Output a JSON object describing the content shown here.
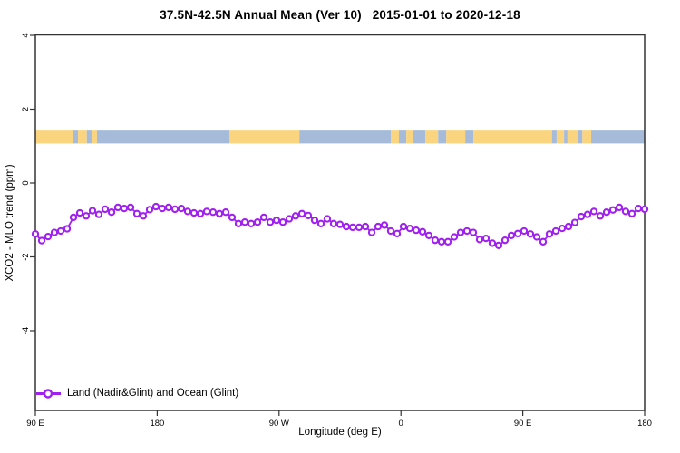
{
  "chart_data": {
    "type": "line",
    "title": "37.5N-42.5N Annual Mean (Ver 10)   2015-01-01 to 2020-12-18",
    "xlabel": "Longitude (deg E)",
    "ylabel": "XCO2 - MLO trend (ppm)",
    "grid": false,
    "legend_position": "inside-bottom-left",
    "x_axis": {
      "description": "longitude wrapping eastward from 90E, total span 450 degrees",
      "tick_labels": [
        "90 E",
        "180",
        "90 W",
        "0",
        "90 E",
        "180"
      ],
      "tick_offsets_deg": [
        0,
        90,
        180,
        270,
        360,
        450
      ],
      "span_deg": 450
    },
    "y_axis": {
      "tick_values": [
        4,
        2,
        0,
        -2,
        -4
      ],
      "ylim": [
        -6.2,
        4.0
      ]
    },
    "series": [
      {
        "name": "Land (Nadir&Glint) and Ocean (Glint)",
        "color": "#A020F0",
        "marker": "open-circle",
        "x_start_deg": 0,
        "x_step_deg": 4.6875,
        "values": [
          -1.38,
          -1.56,
          -1.45,
          -1.34,
          -1.3,
          -1.24,
          -0.93,
          -0.81,
          -0.89,
          -0.75,
          -0.85,
          -0.71,
          -0.79,
          -0.66,
          -0.69,
          -0.66,
          -0.83,
          -0.89,
          -0.72,
          -0.64,
          -0.69,
          -0.66,
          -0.71,
          -0.69,
          -0.77,
          -0.81,
          -0.83,
          -0.77,
          -0.79,
          -0.83,
          -0.79,
          -0.93,
          -1.1,
          -1.06,
          -1.1,
          -1.06,
          -0.93,
          -1.06,
          -1.01,
          -1.06,
          -0.97,
          -0.89,
          -0.83,
          -0.88,
          -1.01,
          -1.1,
          -0.97,
          -1.1,
          -1.12,
          -1.18,
          -1.2,
          -1.2,
          -1.18,
          -1.34,
          -1.18,
          -1.14,
          -1.3,
          -1.37,
          -1.18,
          -1.23,
          -1.28,
          -1.32,
          -1.42,
          -1.55,
          -1.59,
          -1.59,
          -1.46,
          -1.34,
          -1.3,
          -1.34,
          -1.53,
          -1.5,
          -1.63,
          -1.69,
          -1.55,
          -1.42,
          -1.37,
          -1.3,
          -1.38,
          -1.46,
          -1.59,
          -1.38,
          -1.3,
          -1.23,
          -1.18,
          -1.07,
          -0.91,
          -0.85,
          -0.77,
          -0.89,
          -0.79,
          -0.73,
          -0.66,
          -0.77,
          -0.83,
          -0.69,
          -0.71
        ]
      }
    ],
    "land_ocean_strip": {
      "description": "land/ocean map band drawn across the plot near +1.2 ppm",
      "land_color": "#FBD47F",
      "ocean_color": "#A5BBD9",
      "ppm_top": 1.42,
      "ppm_bottom": 1.07,
      "segments_deg": [
        [
          0,
          27.5,
          "land"
        ],
        [
          27.5,
          31.5,
          "ocean"
        ],
        [
          31.5,
          38,
          "land"
        ],
        [
          38,
          41.5,
          "ocean"
        ],
        [
          41.5,
          45.5,
          "land"
        ],
        [
          45.5,
          143.5,
          "ocean"
        ],
        [
          143.5,
          195,
          "land"
        ],
        [
          195,
          262.5,
          "ocean"
        ],
        [
          262.5,
          268.5,
          "land"
        ],
        [
          268.5,
          274,
          "ocean"
        ],
        [
          274,
          279,
          "land"
        ],
        [
          279,
          288,
          "ocean"
        ],
        [
          288,
          297.5,
          "land"
        ],
        [
          297.5,
          303.5,
          "ocean"
        ],
        [
          303.5,
          317.5,
          "land"
        ],
        [
          317.5,
          323.5,
          "ocean"
        ],
        [
          323.5,
          381.5,
          "land"
        ],
        [
          381.5,
          385,
          "ocean"
        ],
        [
          385,
          390.5,
          "land"
        ],
        [
          390.5,
          393,
          "ocean"
        ],
        [
          393,
          400.5,
          "land"
        ],
        [
          400.5,
          404,
          "ocean"
        ],
        [
          404,
          410.5,
          "land"
        ],
        [
          410.5,
          450,
          "ocean"
        ]
      ]
    },
    "axis_color": "#333333"
  }
}
